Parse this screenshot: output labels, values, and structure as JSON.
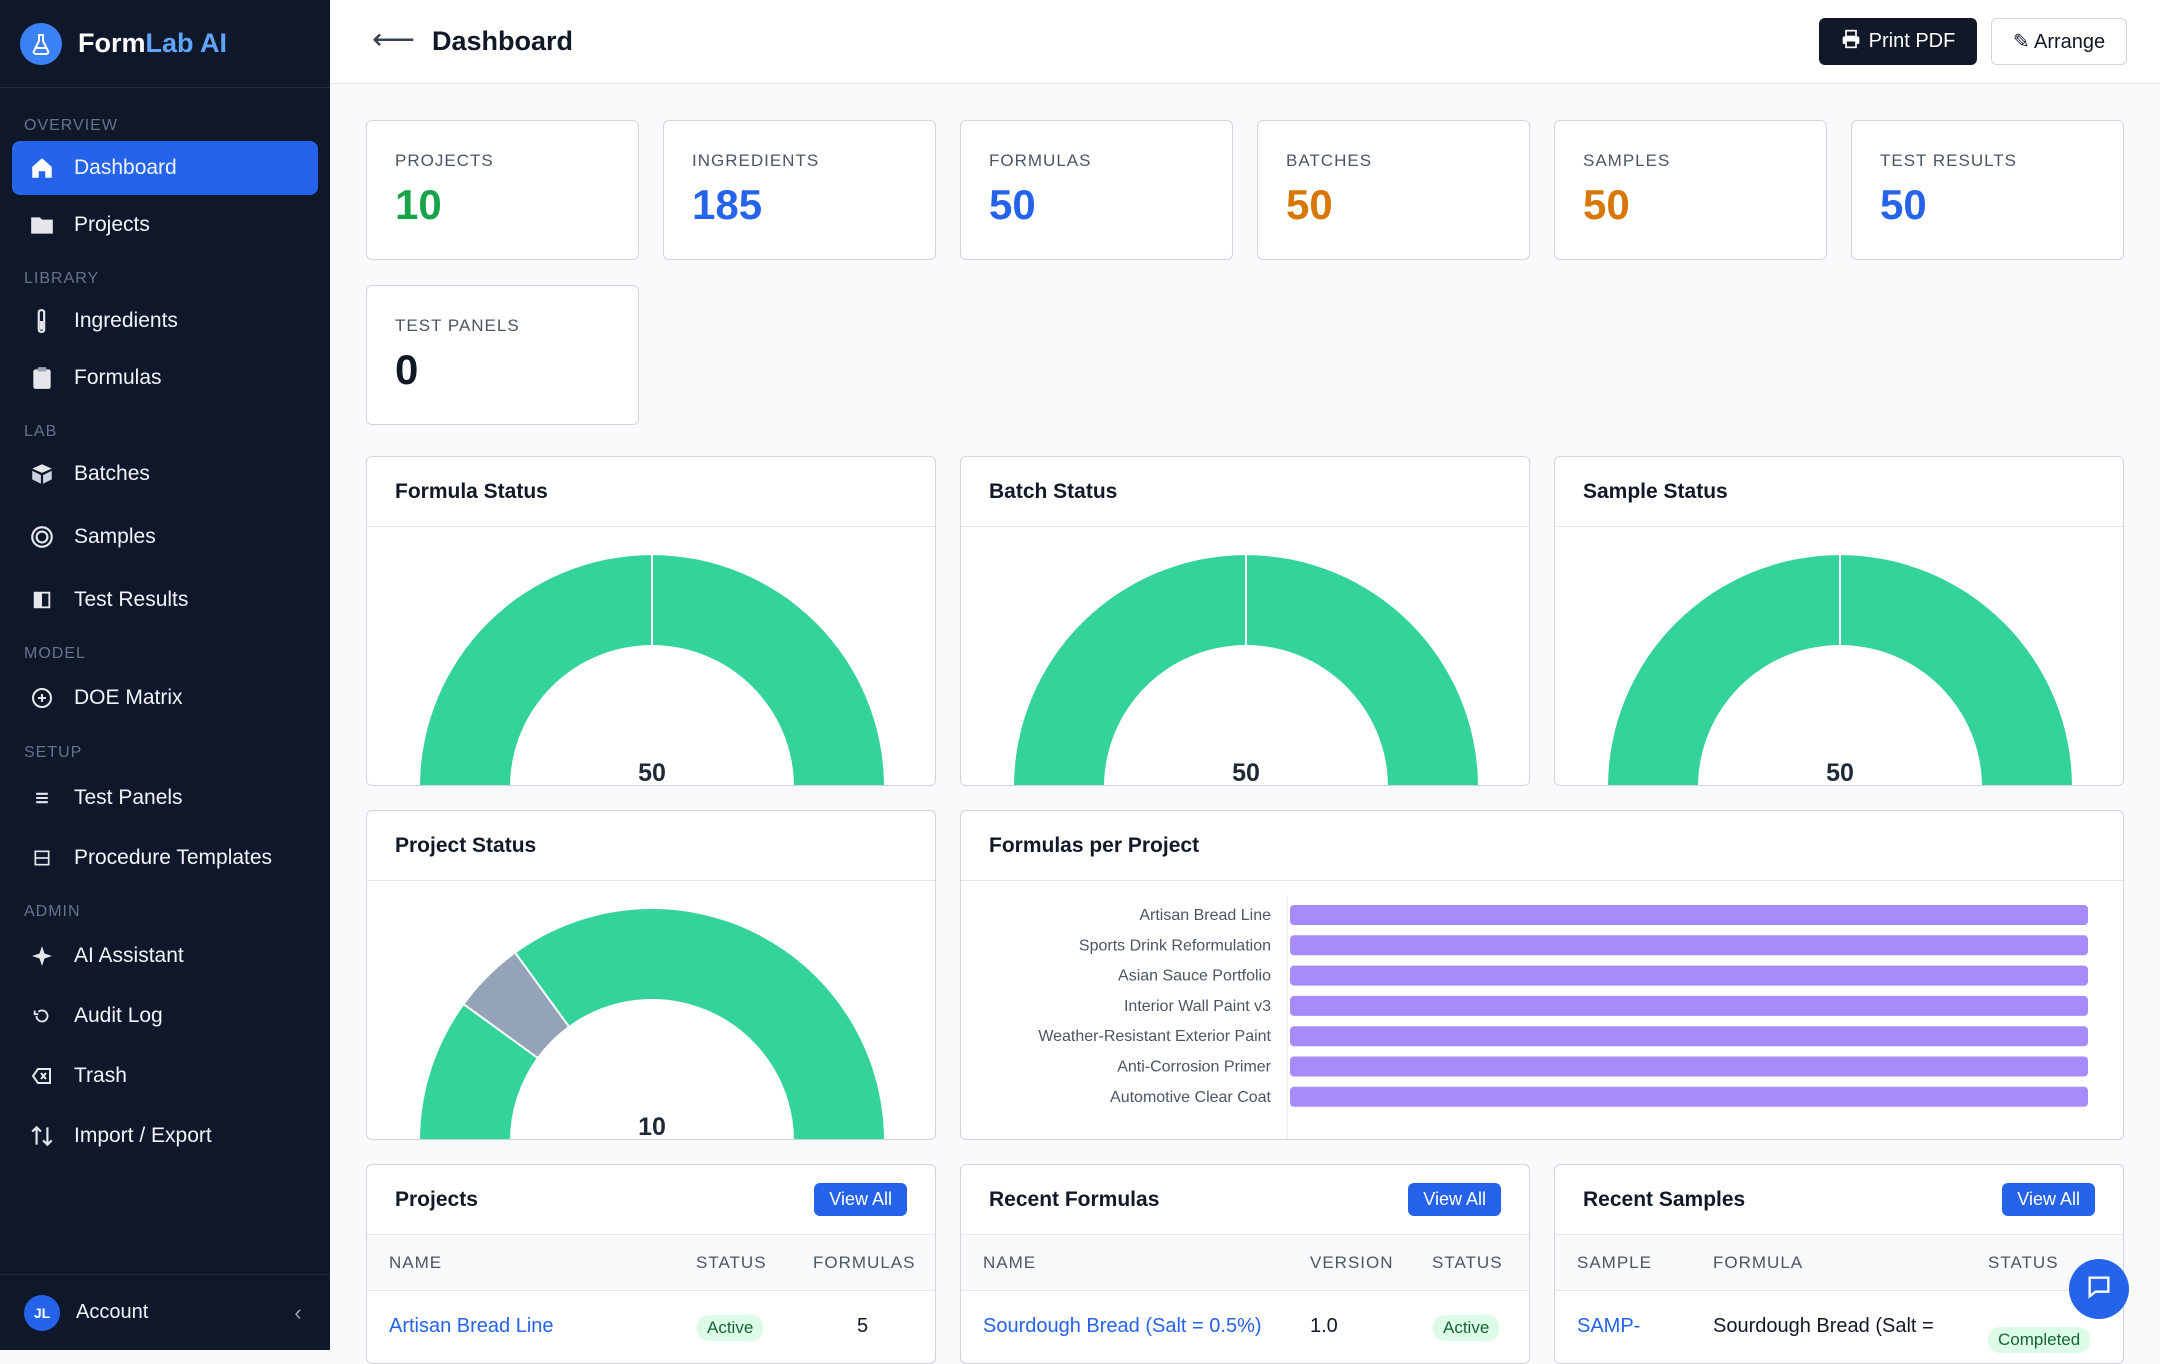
{
  "brand": {
    "name_main": "Form",
    "name_lab": "Lab",
    "name_ai": " AI"
  },
  "sidebar": {
    "sections": {
      "overview": "OVERVIEW",
      "library": "LIBRARY",
      "lab": "LAB",
      "model": "MODEL",
      "setup": "SETUP",
      "admin": "ADMIN"
    },
    "items": [
      {
        "label": "Dashboard",
        "icon": "home-icon",
        "active": true
      },
      {
        "label": "Projects",
        "icon": "folder-icon"
      },
      {
        "label": "Ingredients",
        "icon": "test-tube-icon"
      },
      {
        "label": "Formulas",
        "icon": "clipboard-icon"
      },
      {
        "label": "Batches",
        "icon": "box-icon"
      },
      {
        "label": "Samples",
        "icon": "target-icon"
      },
      {
        "label": "Test Results",
        "icon": "panel-icon"
      },
      {
        "label": "DOE Matrix",
        "icon": "plus-circle-icon"
      },
      {
        "label": "Test Panels",
        "icon": "list-icon"
      },
      {
        "label": "Procedure Templates",
        "icon": "template-icon"
      },
      {
        "label": "AI Assistant",
        "icon": "sparkle-icon"
      },
      {
        "label": "Audit Log",
        "icon": "history-icon"
      },
      {
        "label": "Trash",
        "icon": "trash-icon"
      },
      {
        "label": "Import / Export",
        "icon": "import-export-icon"
      }
    ],
    "account": {
      "initials": "JL",
      "label": "Account",
      "collapse": "‹"
    }
  },
  "topbar": {
    "back": "⟵",
    "title": "Dashboard",
    "print_label": "Print PDF",
    "arrange_label": "✎ Arrange"
  },
  "stats": [
    {
      "label": "PROJECTS",
      "value": "10",
      "color": "#16a34a"
    },
    {
      "label": "INGREDIENTS",
      "value": "185",
      "color": "#2563eb"
    },
    {
      "label": "FORMULAS",
      "value": "50",
      "color": "#2563eb"
    },
    {
      "label": "BATCHES",
      "value": "50",
      "color": "#d97706"
    },
    {
      "label": "SAMPLES",
      "value": "50",
      "color": "#d97706"
    },
    {
      "label": "TEST RESULTS",
      "value": "50",
      "color": "#2563eb"
    },
    {
      "label": "TEST PANELS",
      "value": "0",
      "color": "#111827"
    }
  ],
  "gauges": [
    {
      "title": "Formula Status",
      "total": "50",
      "segments": [
        {
          "value": 50,
          "color": "#34d399"
        }
      ]
    },
    {
      "title": "Batch Status",
      "total": "50",
      "segments": [
        {
          "value": 50,
          "color": "#34d399"
        }
      ]
    },
    {
      "title": "Sample Status",
      "total": "50",
      "segments": [
        {
          "value": 50,
          "color": "#34d399"
        }
      ]
    },
    {
      "title": "Project Status",
      "total": "10",
      "segments": [
        {
          "value": 2,
          "color": "#34d399"
        },
        {
          "value": 1,
          "color": "#94a3b8"
        },
        {
          "value": 7,
          "color": "#34d399"
        }
      ]
    }
  ],
  "chart_data": {
    "type": "bar",
    "title": "Formulas per Project",
    "categories": [
      "Artisan Bread Line",
      "Sports Drink Reformulation",
      "Asian Sauce Portfolio",
      "Interior Wall Paint v3",
      "Weather-Resistant Exterior Paint",
      "Anti-Corrosion Primer",
      "Automotive Clear Coat"
    ],
    "values": [
      5,
      5,
      5,
      5,
      5,
      5,
      5
    ],
    "color": "#a78bfa",
    "orientation": "horizontal"
  },
  "tables": {
    "projects": {
      "title": "Projects",
      "view_all": "View All",
      "headers": [
        "NAME",
        "STATUS",
        "FORMULAS"
      ],
      "row": {
        "name": "Artisan Bread Line",
        "status": "Active",
        "formulas": "5"
      }
    },
    "formulas": {
      "title": "Recent Formulas",
      "view_all": "View All",
      "headers": [
        "NAME",
        "VERSION",
        "STATUS"
      ],
      "row": {
        "name": "Sourdough Bread (Salt = 0.5%)",
        "version": "1.0",
        "status": "Active"
      }
    },
    "samples": {
      "title": "Recent Samples",
      "view_all": "View All",
      "headers": [
        "SAMPLE",
        "FORMULA",
        "STATUS"
      ],
      "row": {
        "sample": "SAMP-",
        "formula": "Sourdough Bread (Salt =",
        "status": "Completed"
      }
    }
  }
}
